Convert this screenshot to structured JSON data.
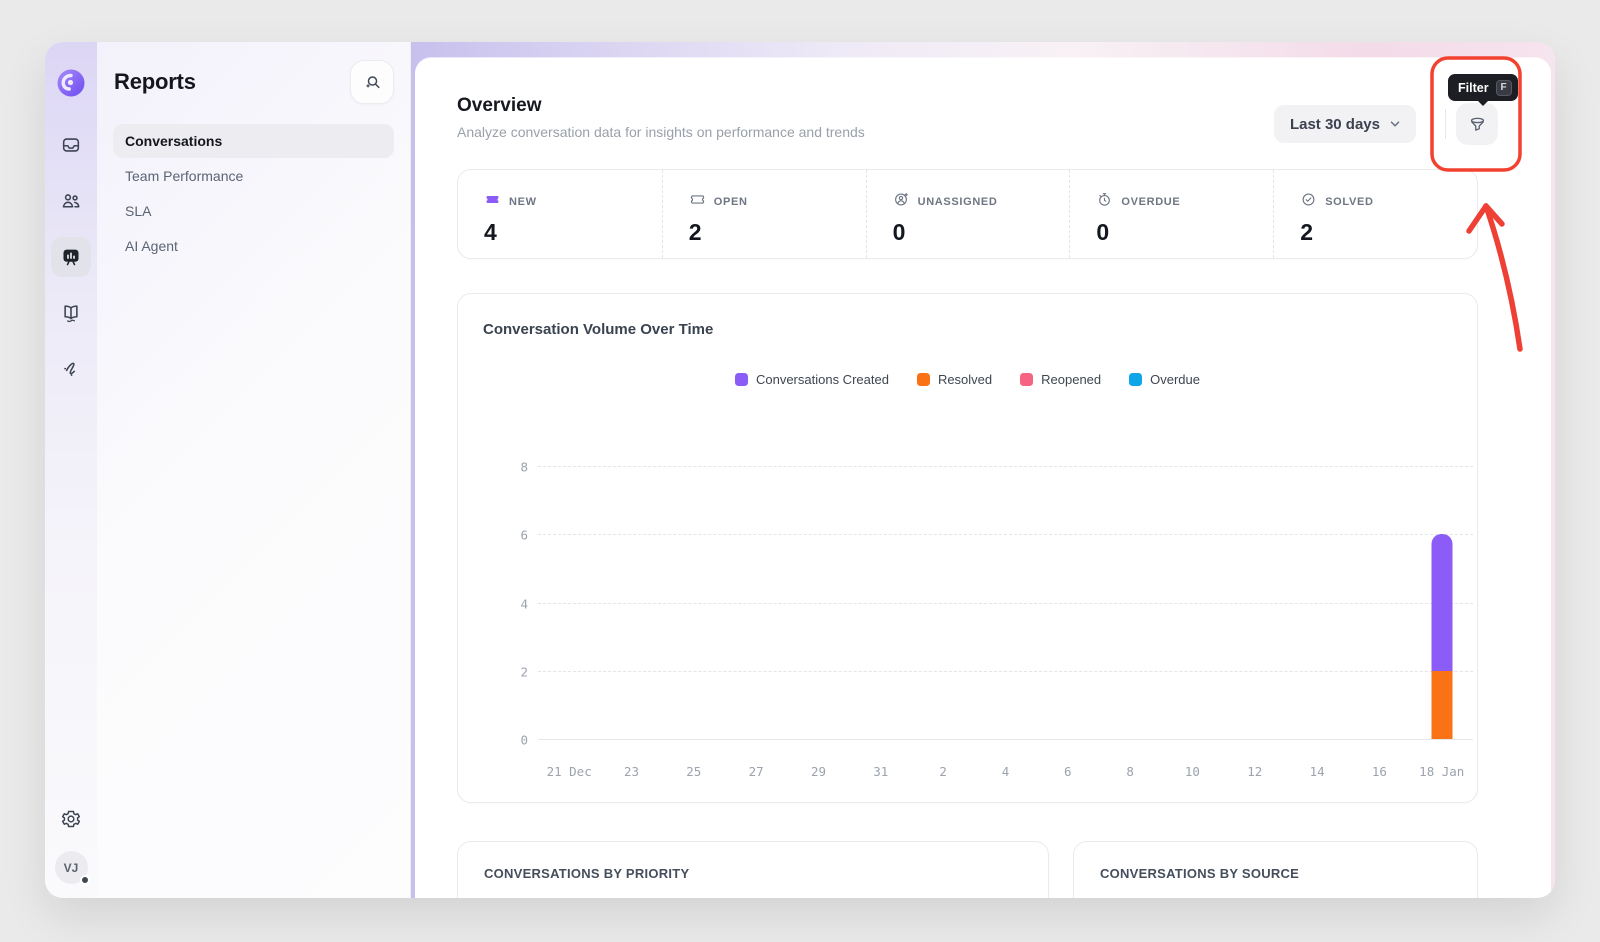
{
  "app": {
    "user_initials": "VJ"
  },
  "rail": {
    "icons": [
      "app-logo",
      "inbox",
      "contacts",
      "reports",
      "knowledge-base",
      "workflows",
      "settings-gear",
      "profile-avatar"
    ],
    "active_icon": "reports"
  },
  "panel": {
    "title": "Reports",
    "search_button_icon": "search-icon",
    "items": [
      {
        "label": "Conversations",
        "active": true
      },
      {
        "label": "Team Performance",
        "active": false
      },
      {
        "label": "SLA",
        "active": false
      },
      {
        "label": "AI Agent",
        "active": false
      }
    ]
  },
  "header": {
    "title": "Overview",
    "subtitle": "Analyze conversation data for insights on performance and trends",
    "date_range_label": "Last 30 days",
    "filter_tooltip": {
      "label": "Filter",
      "shortcut": "F"
    }
  },
  "stats": [
    {
      "label": "NEW",
      "value": "4",
      "icon": "ticket-new-icon"
    },
    {
      "label": "OPEN",
      "value": "2",
      "icon": "ticket-open-icon"
    },
    {
      "label": "UNASSIGNED",
      "value": "0",
      "icon": "person-add-icon"
    },
    {
      "label": "OVERDUE",
      "value": "0",
      "icon": "timer-icon"
    },
    {
      "label": "SOLVED",
      "value": "2",
      "icon": "check-circle-icon"
    }
  ],
  "chart_data": {
    "type": "bar",
    "stacked": true,
    "title": "Conversation Volume Over Time",
    "categories": [
      "21 Dec",
      "23",
      "25",
      "27",
      "29",
      "31",
      "2",
      "4",
      "6",
      "8",
      "10",
      "12",
      "14",
      "16",
      "18 Jan"
    ],
    "series": [
      {
        "name": "Conversations Created",
        "color": "#8B5CF6",
        "values": [
          0,
          0,
          0,
          0,
          0,
          0,
          0,
          0,
          0,
          0,
          0,
          0,
          0,
          0,
          4
        ]
      },
      {
        "name": "Resolved",
        "color": "#F97316",
        "values": [
          0,
          0,
          0,
          0,
          0,
          0,
          0,
          0,
          0,
          0,
          0,
          0,
          0,
          0,
          2
        ]
      },
      {
        "name": "Reopened",
        "color": "#F56480",
        "values": [
          0,
          0,
          0,
          0,
          0,
          0,
          0,
          0,
          0,
          0,
          0,
          0,
          0,
          0,
          0
        ]
      },
      {
        "name": "Overdue",
        "color": "#0EA5E9",
        "values": [
          0,
          0,
          0,
          0,
          0,
          0,
          0,
          0,
          0,
          0,
          0,
          0,
          0,
          0,
          0
        ]
      }
    ],
    "yticks": [
      0,
      2,
      4,
      6,
      8
    ],
    "ylim": [
      0,
      8
    ],
    "grid": "dashed-horizontal",
    "legend_position": "top-center"
  },
  "bottom_cards": [
    {
      "title": "CONVERSATIONS BY PRIORITY"
    },
    {
      "title": "CONVERSATIONS BY SOURCE"
    }
  ],
  "annotation": {
    "type": "highlight-box-and-arrow",
    "target": "filter-button",
    "color": "#F2412F"
  },
  "colors": {
    "accent_purple": "#8B5CF6",
    "orange": "#F97316",
    "rose": "#F56480",
    "blue": "#0EA5E9",
    "annotation_red": "#F2412F"
  }
}
